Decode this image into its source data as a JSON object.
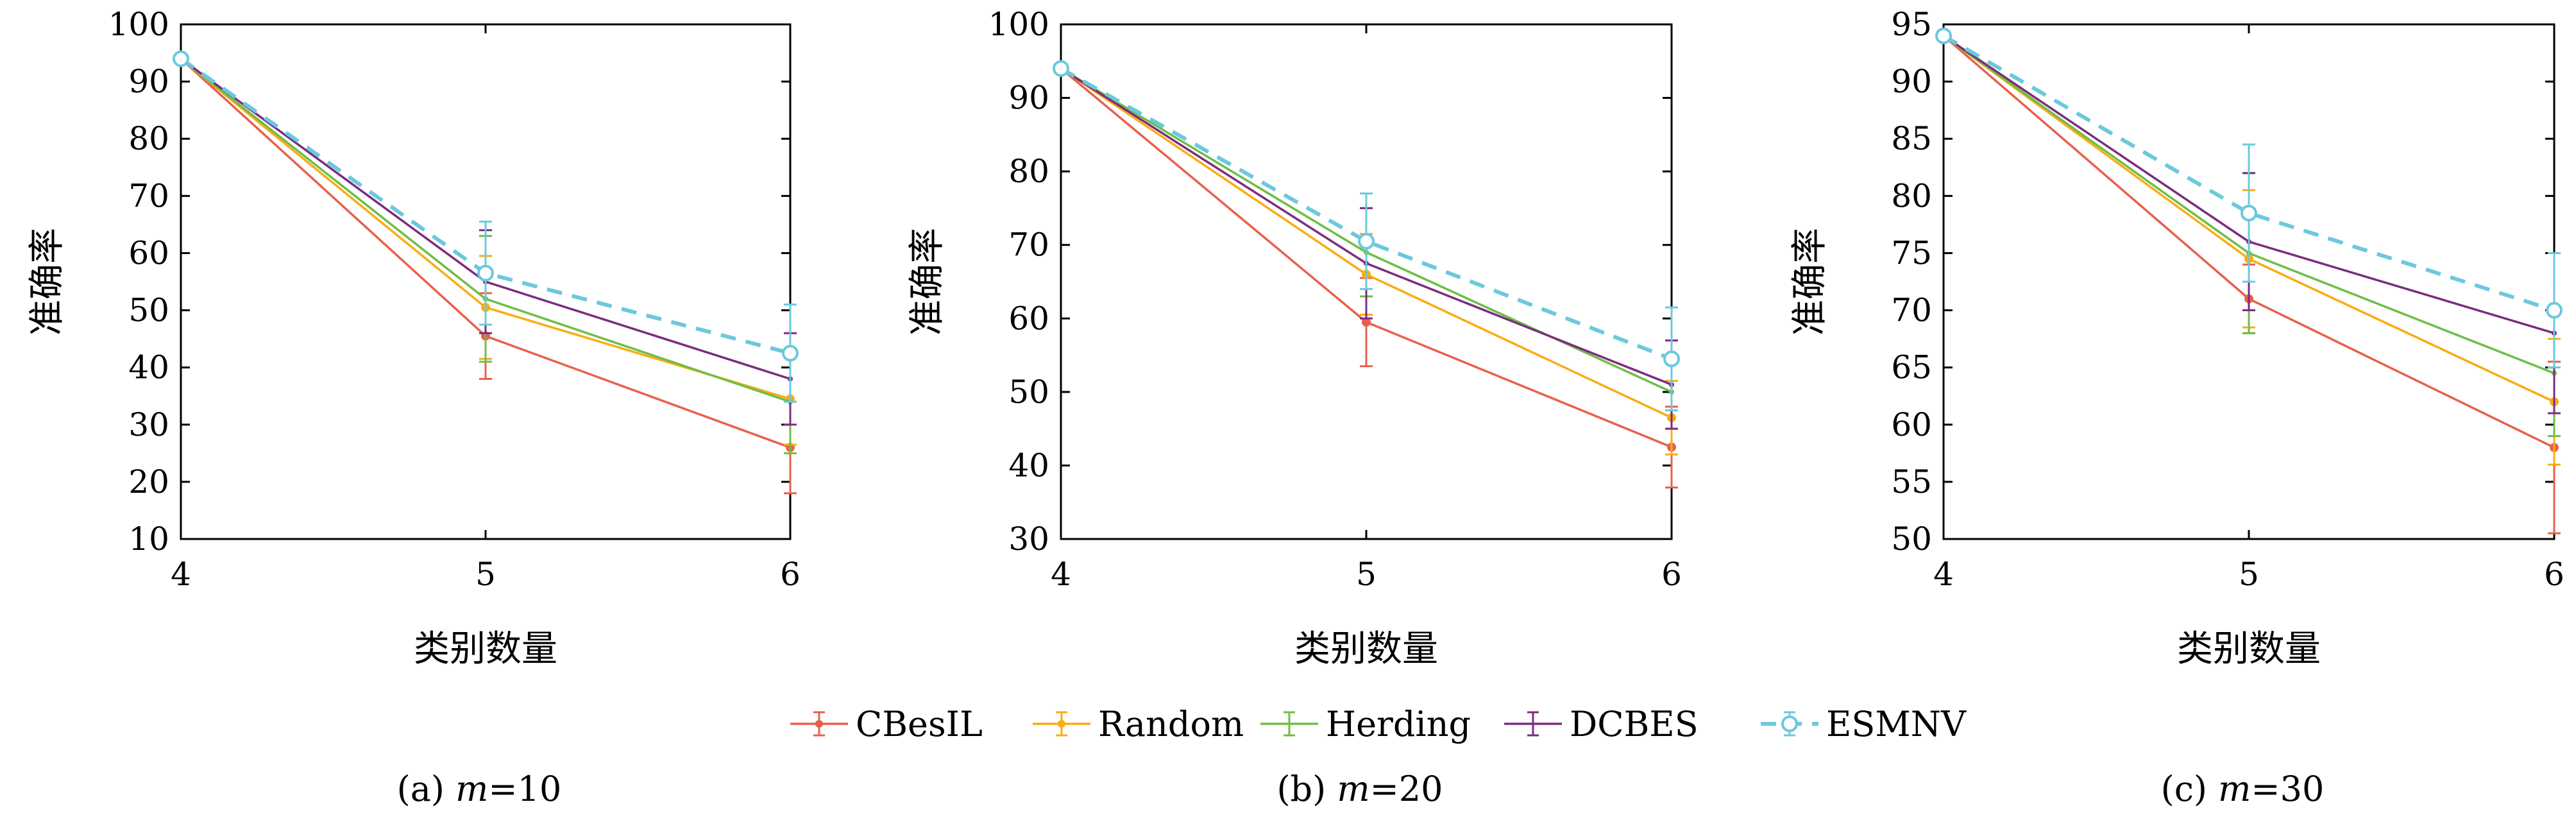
{
  "chart_data": [
    {
      "type": "line",
      "caption": "(a) m=10",
      "caption_prefix": "(a) ",
      "caption_var": "m",
      "caption_value": "=10",
      "xlabel": "类别数量",
      "ylabel": "准确率",
      "x": [
        4,
        5,
        6
      ],
      "xlim": [
        4,
        6
      ],
      "ylim": [
        10,
        100
      ],
      "yticks": [
        10,
        20,
        30,
        40,
        50,
        60,
        70,
        80,
        90,
        100
      ],
      "series": [
        {
          "name": "CBesIL",
          "values": [
            94,
            45.5,
            26
          ],
          "errors": [
            0,
            7.5,
            8
          ]
        },
        {
          "name": "Random",
          "values": [
            94,
            50.5,
            34.5
          ],
          "errors": [
            0,
            9,
            8
          ]
        },
        {
          "name": "Herding",
          "values": [
            94,
            52,
            34
          ],
          "errors": [
            0,
            11,
            9
          ]
        },
        {
          "name": "DCBES",
          "values": [
            94,
            55,
            38
          ],
          "errors": [
            0,
            9,
            8
          ]
        },
        {
          "name": "ESMNV",
          "values": [
            94,
            56.5,
            42.5
          ],
          "errors": [
            0,
            9,
            8.5
          ]
        }
      ]
    },
    {
      "type": "line",
      "caption": "(b) m=20",
      "caption_prefix": "(b) ",
      "caption_var": "m",
      "caption_value": "=20",
      "xlabel": "类别数量",
      "ylabel": "准确率",
      "x": [
        4,
        5,
        6
      ],
      "xlim": [
        4,
        6
      ],
      "ylim": [
        30,
        100
      ],
      "yticks": [
        30,
        40,
        50,
        60,
        70,
        80,
        90,
        100
      ],
      "series": [
        {
          "name": "CBesIL",
          "values": [
            94,
            59.5,
            42.5
          ],
          "errors": [
            0,
            6,
            5.5
          ]
        },
        {
          "name": "Random",
          "values": [
            94,
            66,
            46.5
          ],
          "errors": [
            0,
            5.5,
            5
          ]
        },
        {
          "name": "Herding",
          "values": [
            94,
            69,
            50
          ],
          "errors": [
            0,
            6,
            5
          ]
        },
        {
          "name": "DCBES",
          "values": [
            94,
            67.5,
            51
          ],
          "errors": [
            0,
            7.5,
            6
          ]
        },
        {
          "name": "ESMNV",
          "values": [
            94,
            70.5,
            54.5
          ],
          "errors": [
            0,
            6.5,
            7
          ]
        }
      ]
    },
    {
      "type": "line",
      "caption": "(c) m=30",
      "caption_prefix": "(c) ",
      "caption_var": "m",
      "caption_value": "=30",
      "xlabel": "类别数量",
      "ylabel": "准确率",
      "x": [
        4,
        5,
        6
      ],
      "xlim": [
        4,
        6
      ],
      "ylim": [
        50,
        95
      ],
      "yticks": [
        50,
        55,
        60,
        65,
        70,
        75,
        80,
        85,
        90,
        95
      ],
      "series": [
        {
          "name": "CBesIL",
          "values": [
            94,
            71,
            58
          ],
          "errors": [
            0,
            3,
            7.5
          ]
        },
        {
          "name": "Random",
          "values": [
            94,
            74.5,
            62
          ],
          "errors": [
            0,
            6,
            5.5
          ]
        },
        {
          "name": "Herding",
          "values": [
            94,
            75,
            64.5
          ],
          "errors": [
            0,
            7,
            5.5
          ]
        },
        {
          "name": "DCBES",
          "values": [
            94,
            76,
            68
          ],
          "errors": [
            0,
            6,
            7
          ]
        },
        {
          "name": "ESMNV",
          "values": [
            94,
            78.5,
            70
          ],
          "errors": [
            0,
            6,
            5
          ]
        }
      ]
    }
  ],
  "legend": {
    "placement": "bottom-center",
    "items": [
      {
        "name": "CBesIL",
        "color": "#E8604C",
        "dashed": false,
        "marker": "star"
      },
      {
        "name": "Random",
        "color": "#F9AC14",
        "dashed": false,
        "marker": "star"
      },
      {
        "name": "Herding",
        "color": "#6DBE45",
        "dashed": false,
        "marker": "none"
      },
      {
        "name": "DCBES",
        "color": "#7B2D7E",
        "dashed": false,
        "marker": "none"
      },
      {
        "name": "ESMNV",
        "color": "#6CC8DD",
        "dashed": true,
        "marker": "circle"
      }
    ]
  }
}
